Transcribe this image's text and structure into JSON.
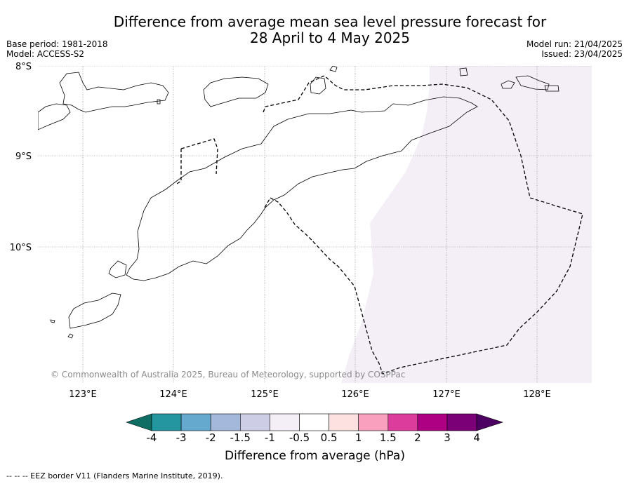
{
  "title": {
    "line1": "Difference from average mean sea level pressure forecast for",
    "line2": "28 April to 4 May 2025"
  },
  "meta": {
    "base_period": "Base period: 1981-2018",
    "model": "Model: ACCESS-S2",
    "model_run": "Model run: 21/04/2025",
    "issued": "Issued: 23/04/2025"
  },
  "map": {
    "lat_labels": [
      "8°S",
      "9°S",
      "10°S"
    ],
    "lon_labels": [
      "123°E",
      "124°E",
      "125°E",
      "126°E",
      "127°E",
      "128°E"
    ],
    "copyright": "© Commonwealth of Australia 2025, Bureau of Meteorology, supported by COSPPac",
    "shaded_anomaly_class": "-1 to -0.5",
    "shaded_color": "#f4eef7"
  },
  "colorbar": {
    "title": "Difference from average (hPa)",
    "ticks": [
      "-4",
      "-3",
      "-2",
      "-1.5",
      "-1",
      "-0.5",
      "0.5",
      "1",
      "1.5",
      "2",
      "3",
      "4"
    ],
    "colors": [
      "#0e6e63",
      "#2496a0",
      "#65a9cf",
      "#a4b8db",
      "#cdcde6",
      "#f4eef7",
      "#ffffff",
      "#fde1e1",
      "#f8a0bd",
      "#dc3c9c",
      "#ad0082",
      "#7b0078",
      "#4b0062"
    ]
  },
  "footer": {
    "text": "--  --  -- EEZ border V11 (Flanders Marine Institute, 2019)."
  }
}
